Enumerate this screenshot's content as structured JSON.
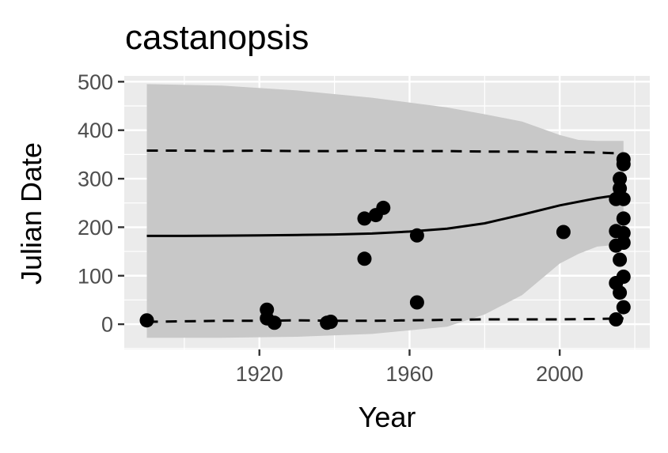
{
  "chart_data": {
    "type": "scatter",
    "title": "castanopsis",
    "xlabel": "Year",
    "ylabel": "Julian Date",
    "xlim": [
      1884,
      2024
    ],
    "ylim": [
      -52,
      512
    ],
    "x_ticks": [
      1920,
      1960,
      2000
    ],
    "y_ticks": [
      0,
      100,
      200,
      300,
      400,
      500
    ],
    "grid": true,
    "legend": "none",
    "colors": {
      "panel": "#ebebeb",
      "grid": "#ffffff",
      "ribbon": "#c8c8c8",
      "points": "#000000",
      "fit_line": "#000000",
      "tick_text": "#4d4d4d",
      "tick_marks": "#333333"
    },
    "points": [
      {
        "x": 1890,
        "y": 8
      },
      {
        "x": 1922,
        "y": 30
      },
      {
        "x": 1922,
        "y": 12
      },
      {
        "x": 1924,
        "y": 3
      },
      {
        "x": 1938,
        "y": 3
      },
      {
        "x": 1939,
        "y": 5
      },
      {
        "x": 1948,
        "y": 218
      },
      {
        "x": 1948,
        "y": 135
      },
      {
        "x": 1951,
        "y": 225
      },
      {
        "x": 1953,
        "y": 240
      },
      {
        "x": 1962,
        "y": 183
      },
      {
        "x": 1962,
        "y": 45
      },
      {
        "x": 2001,
        "y": 190
      },
      {
        "x": 2015,
        "y": 258
      },
      {
        "x": 2015,
        "y": 192
      },
      {
        "x": 2015,
        "y": 162
      },
      {
        "x": 2015,
        "y": 85
      },
      {
        "x": 2015,
        "y": 10
      },
      {
        "x": 2016,
        "y": 300
      },
      {
        "x": 2016,
        "y": 280
      },
      {
        "x": 2016,
        "y": 133
      },
      {
        "x": 2016,
        "y": 65
      },
      {
        "x": 2017,
        "y": 340
      },
      {
        "x": 2017,
        "y": 330
      },
      {
        "x": 2017,
        "y": 258
      },
      {
        "x": 2017,
        "y": 218
      },
      {
        "x": 2017,
        "y": 188
      },
      {
        "x": 2017,
        "y": 168
      },
      {
        "x": 2017,
        "y": 98
      },
      {
        "x": 2017,
        "y": 35
      }
    ],
    "fit_line": {
      "x": [
        1890,
        1900,
        1910,
        1920,
        1930,
        1940,
        1950,
        1960,
        1970,
        1980,
        1990,
        2000,
        2010,
        2017
      ],
      "y": [
        182,
        182,
        182.5,
        183,
        184,
        185,
        187,
        191,
        197,
        208,
        226,
        245,
        260,
        268
      ]
    },
    "ribbon": {
      "x": [
        1890,
        1910,
        1930,
        1950,
        1970,
        1980,
        1990,
        2000,
        2005,
        2010,
        2017
      ],
      "upper": [
        495,
        492,
        482,
        467,
        447,
        433,
        418,
        390,
        380,
        378,
        378
      ],
      "lower": [
        -28,
        -28,
        -26,
        -20,
        -5,
        20,
        60,
        125,
        145,
        160,
        165
      ]
    },
    "dashed_upper": {
      "x": [
        1890,
        1900,
        1910,
        1920,
        1930,
        1940,
        1950,
        1960,
        1970,
        1980,
        1990,
        2000,
        2010,
        2017
      ],
      "y": [
        358,
        358,
        357,
        358,
        357,
        357,
        358,
        357,
        357,
        356,
        356,
        355,
        354,
        352
      ]
    },
    "dashed_lower": {
      "x": [
        1890,
        1900,
        1910,
        1920,
        1930,
        1940,
        1950,
        1960,
        1970,
        1980,
        1990,
        2000,
        2010,
        2017
      ],
      "y": [
        5,
        6,
        7,
        7,
        8,
        7,
        7,
        8,
        9,
        10,
        10,
        10,
        11,
        12
      ]
    }
  }
}
